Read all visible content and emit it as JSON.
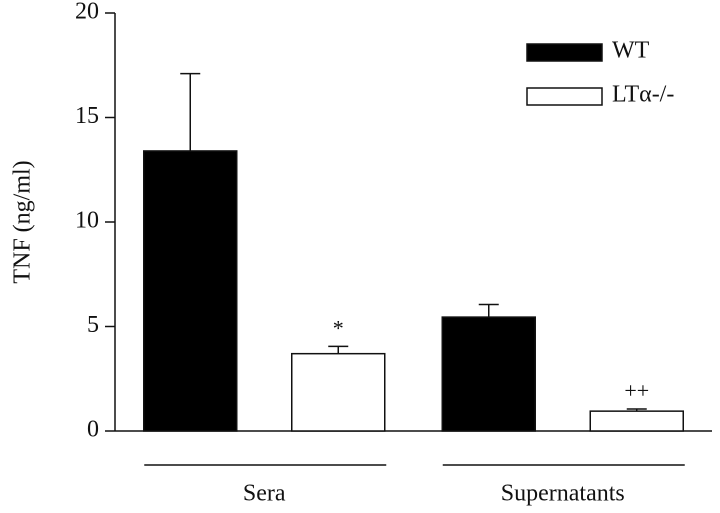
{
  "chart_data": {
    "type": "bar",
    "y_label": "TNF (ng/ml)",
    "categories": [
      "Sera",
      "Supernatants"
    ],
    "series": [
      {
        "name": "WT",
        "color": "#000000",
        "values": [
          13.4,
          5.45
        ],
        "errors": [
          3.7,
          0.6
        ]
      },
      {
        "name": "LTα-/-",
        "color": "#ffffff",
        "values": [
          3.7,
          0.95
        ],
        "errors": [
          0.35,
          0.1
        ],
        "annotations": [
          "*",
          "++"
        ]
      }
    ],
    "ylim": [
      0,
      20
    ],
    "yticks": [
      0,
      5,
      10,
      15,
      20
    ],
    "legend": "top-right"
  }
}
